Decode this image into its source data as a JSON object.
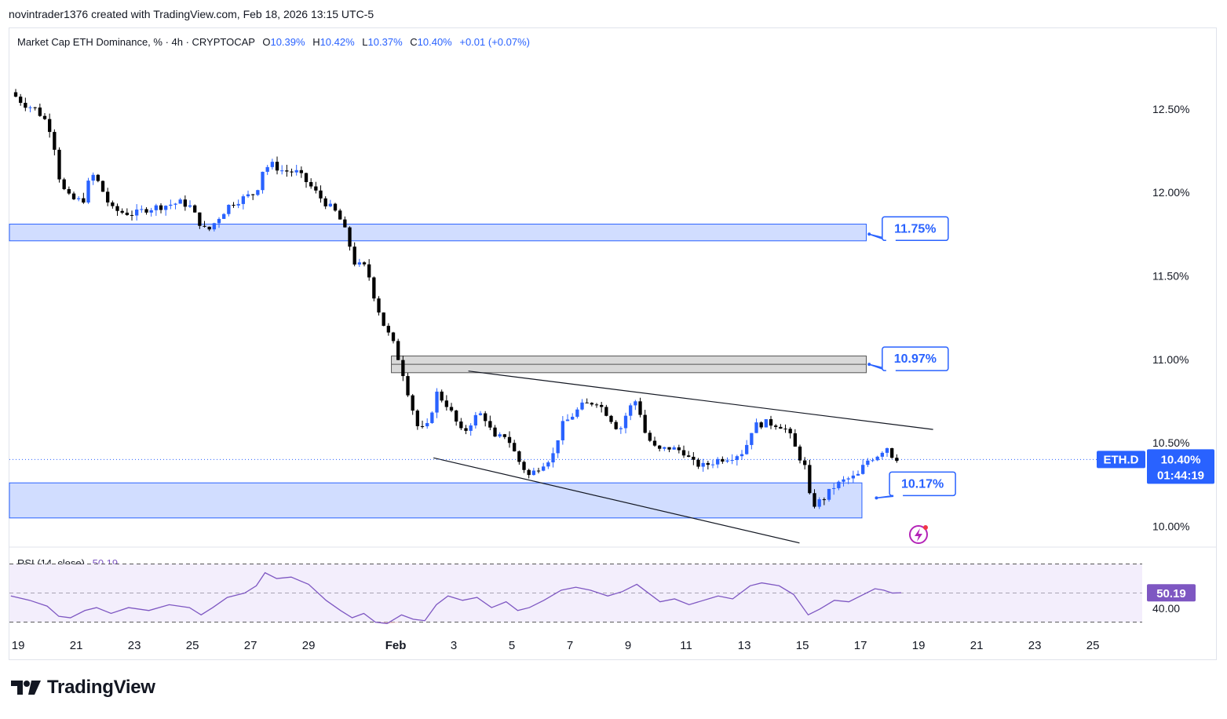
{
  "header": {
    "text": "novintrader1376 created with TradingView.com, Feb 18, 2026 13:15 UTC-5"
  },
  "legend": {
    "symbol": "Market Cap ETH Dominance, % · 4h · CRYPTOCAP",
    "o_label": "O",
    "o_value": "10.39%",
    "h_label": "H",
    "h_value": "10.42%",
    "l_label": "L",
    "l_value": "10.37%",
    "c_label": "C",
    "c_value": "10.40%",
    "change": "+0.01 (+0.07%)"
  },
  "rsi_legend": {
    "label": "RSI (14, close)",
    "value": "50.19"
  },
  "brand": {
    "name": "TradingView"
  },
  "colors": {
    "up": "#2962ff",
    "down": "#000000",
    "zone": "#d1ddff",
    "zone_border": "#2962ff",
    "grey_zone": "#d9d9d9",
    "rsi_line": "#7e57c2",
    "rsi_band": "#f3eefc",
    "oversold_fill": "#f8c9c9"
  },
  "chart_data": [
    {
      "type": "candlestick",
      "title": "Market Cap ETH Dominance, % · 4h · CRYPTOCAP",
      "y_unit": "%",
      "ylim": [
        9.88,
        12.72
      ],
      "y_ticks": [
        "12.50%",
        "12.00%",
        "11.50%",
        "11.00%",
        "10.50%",
        "10.00%"
      ],
      "y_tick_values": [
        12.5,
        12.0,
        11.5,
        11.0,
        10.5,
        10.0
      ],
      "x_ticks": [
        "19",
        "21",
        "23",
        "25",
        "27",
        "29",
        "Feb",
        "3",
        "5",
        "7",
        "9",
        "11",
        "13",
        "15",
        "17",
        "19",
        "21",
        "23",
        "25"
      ],
      "x_tick_days": [
        0,
        2,
        4,
        6,
        8,
        10,
        13,
        15,
        17,
        19,
        21,
        23,
        25,
        27,
        29,
        31,
        33,
        35,
        37
      ],
      "x_range_days": [
        -0.3,
        38.7
      ],
      "close_path": [
        [
          -0.25,
          12.6
        ],
        [
          0.2,
          12.53
        ],
        [
          0.6,
          12.5
        ],
        [
          1.0,
          12.42
        ],
        [
          1.2,
          12.33
        ],
        [
          1.4,
          12.1
        ],
        [
          1.65,
          11.98
        ],
        [
          2.0,
          11.95
        ],
        [
          2.3,
          11.96
        ],
        [
          2.5,
          12.12
        ],
        [
          2.8,
          12.05
        ],
        [
          3.2,
          11.9
        ],
        [
          3.6,
          11.88
        ],
        [
          4.0,
          11.87
        ],
        [
          4.4,
          11.9
        ],
        [
          5.0,
          11.92
        ],
        [
          5.6,
          11.94
        ],
        [
          5.9,
          11.92
        ],
        [
          6.2,
          11.83
        ],
        [
          6.5,
          11.76
        ],
        [
          6.9,
          11.85
        ],
        [
          7.3,
          11.93
        ],
        [
          7.8,
          11.97
        ],
        [
          8.2,
          12.0
        ],
        [
          8.4,
          12.13
        ],
        [
          8.7,
          12.17
        ],
        [
          9.1,
          12.13
        ],
        [
          9.6,
          12.12
        ],
        [
          10.0,
          12.05
        ],
        [
          10.5,
          11.95
        ],
        [
          11.0,
          11.87
        ],
        [
          11.3,
          11.75
        ],
        [
          11.6,
          11.57
        ],
        [
          12.0,
          11.55
        ],
        [
          12.3,
          11.35
        ],
        [
          12.6,
          11.2
        ],
        [
          12.9,
          11.1
        ],
        [
          13.2,
          10.95
        ],
        [
          13.5,
          10.75
        ],
        [
          13.8,
          10.57
        ],
        [
          14.1,
          10.6
        ],
        [
          14.4,
          10.8
        ],
        [
          14.8,
          10.72
        ],
        [
          15.3,
          10.55
        ],
        [
          15.7,
          10.65
        ],
        [
          16.0,
          10.68
        ],
        [
          16.4,
          10.52
        ],
        [
          16.8,
          10.55
        ],
        [
          17.2,
          10.4
        ],
        [
          17.6,
          10.3
        ],
        [
          18.0,
          10.37
        ],
        [
          18.4,
          10.42
        ],
        [
          18.7,
          10.6
        ],
        [
          19.0,
          10.65
        ],
        [
          19.4,
          10.72
        ],
        [
          19.9,
          10.75
        ],
        [
          20.3,
          10.67
        ],
        [
          20.7,
          10.57
        ],
        [
          21.0,
          10.7
        ],
        [
          21.3,
          10.76
        ],
        [
          21.6,
          10.55
        ],
        [
          22.0,
          10.45
        ],
        [
          22.4,
          10.47
        ],
        [
          22.9,
          10.45
        ],
        [
          23.2,
          10.38
        ],
        [
          23.6,
          10.36
        ],
        [
          24.1,
          10.4
        ],
        [
          24.6,
          10.42
        ],
        [
          25.0,
          10.45
        ],
        [
          25.3,
          10.6
        ],
        [
          25.7,
          10.62
        ],
        [
          26.2,
          10.61
        ],
        [
          26.5,
          10.57
        ],
        [
          26.8,
          10.45
        ],
        [
          27.1,
          10.35
        ],
        [
          27.3,
          10.12
        ],
        [
          27.7,
          10.16
        ],
        [
          28.1,
          10.24
        ],
        [
          28.5,
          10.28
        ],
        [
          28.9,
          10.3
        ],
        [
          29.2,
          10.39
        ],
        [
          29.6,
          10.43
        ],
        [
          29.9,
          10.48
        ],
        [
          30.1,
          10.42
        ],
        [
          30.4,
          10.4
        ]
      ],
      "current_value": "10.40%",
      "current_label": "ETH.D",
      "countdown": "01:44:19",
      "annotations": [
        "11.75%",
        "10.97%",
        "10.17%"
      ]
    },
    {
      "type": "line",
      "title": "RSI (14, close)",
      "ylim": [
        26,
        80
      ],
      "bands": [
        30,
        70
      ],
      "visible_tick": "40.00",
      "last_value": "50.19",
      "series": [
        {
          "name": "RSI (14, close)",
          "values": [
            [
              -0.25,
              48
            ],
            [
              0.4,
              45
            ],
            [
              1.0,
              41
            ],
            [
              1.4,
              34
            ],
            [
              1.8,
              33
            ],
            [
              2.3,
              38
            ],
            [
              2.7,
              40
            ],
            [
              3.2,
              36
            ],
            [
              3.8,
              40
            ],
            [
              4.5,
              38
            ],
            [
              5.2,
              42
            ],
            [
              5.9,
              40
            ],
            [
              6.3,
              35
            ],
            [
              6.7,
              40
            ],
            [
              7.2,
              47
            ],
            [
              7.8,
              50
            ],
            [
              8.2,
              55
            ],
            [
              8.5,
              64
            ],
            [
              8.9,
              60
            ],
            [
              9.4,
              61
            ],
            [
              10.0,
              56
            ],
            [
              10.6,
              45
            ],
            [
              11.1,
              38
            ],
            [
              11.5,
              33
            ],
            [
              11.9,
              36
            ],
            [
              12.3,
              30
            ],
            [
              12.7,
              29
            ],
            [
              13.2,
              35
            ],
            [
              13.6,
              32
            ],
            [
              14.0,
              31
            ],
            [
              14.4,
              42
            ],
            [
              14.8,
              48
            ],
            [
              15.3,
              45
            ],
            [
              15.8,
              47
            ],
            [
              16.3,
              40
            ],
            [
              16.8,
              44
            ],
            [
              17.2,
              38
            ],
            [
              17.6,
              40
            ],
            [
              18.1,
              45
            ],
            [
              18.7,
              52
            ],
            [
              19.2,
              54
            ],
            [
              19.7,
              52
            ],
            [
              20.3,
              48
            ],
            [
              20.8,
              51
            ],
            [
              21.3,
              56
            ],
            [
              21.7,
              50
            ],
            [
              22.1,
              44
            ],
            [
              22.6,
              46
            ],
            [
              23.1,
              42
            ],
            [
              23.6,
              45
            ],
            [
              24.1,
              48
            ],
            [
              24.6,
              46
            ],
            [
              25.2,
              55
            ],
            [
              25.6,
              57
            ],
            [
              26.2,
              55
            ],
            [
              26.7,
              49
            ],
            [
              27.2,
              35
            ],
            [
              27.6,
              39
            ],
            [
              28.1,
              45
            ],
            [
              28.6,
              44
            ],
            [
              29.1,
              49
            ],
            [
              29.5,
              53
            ],
            [
              29.8,
              52
            ],
            [
              30.1,
              50
            ],
            [
              30.4,
              50.19
            ]
          ]
        }
      ]
    }
  ]
}
